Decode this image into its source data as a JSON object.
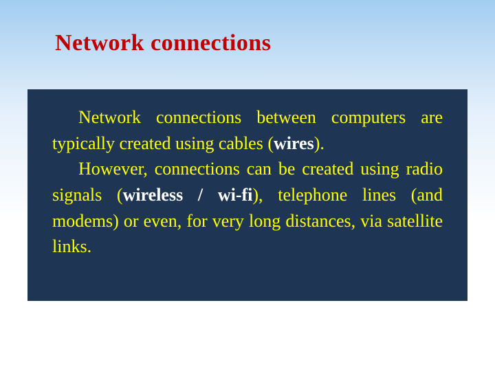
{
  "slide": {
    "title": "Network connections",
    "background": {
      "gradient_top": "#a3cdf0",
      "gradient_mid": "#e4f0fb",
      "gradient_bottom": "#ffffff"
    },
    "content_box": {
      "background_color": "#1e3653",
      "text_color": "#ffff00",
      "bold_color": "#ffffff",
      "font_size_pt": 20,
      "paragraphs": [
        {
          "runs": [
            {
              "text": "Network connections between computers are typically created using cables (",
              "bold": false
            },
            {
              "text": "wires",
              "bold": true
            },
            {
              "text": ").",
              "bold": false
            }
          ]
        },
        {
          "runs": [
            {
              "text": "However, connections can be created using radio signals (",
              "bold": false
            },
            {
              "text": "wireless / wi-fi",
              "bold": true
            },
            {
              "text": "), telephone lines (and modems) or even, for very long distances, via satellite links.",
              "bold": false
            }
          ]
        }
      ]
    },
    "title_style": {
      "color": "#c00000",
      "font_size_pt": 26,
      "font_weight": "bold"
    }
  }
}
